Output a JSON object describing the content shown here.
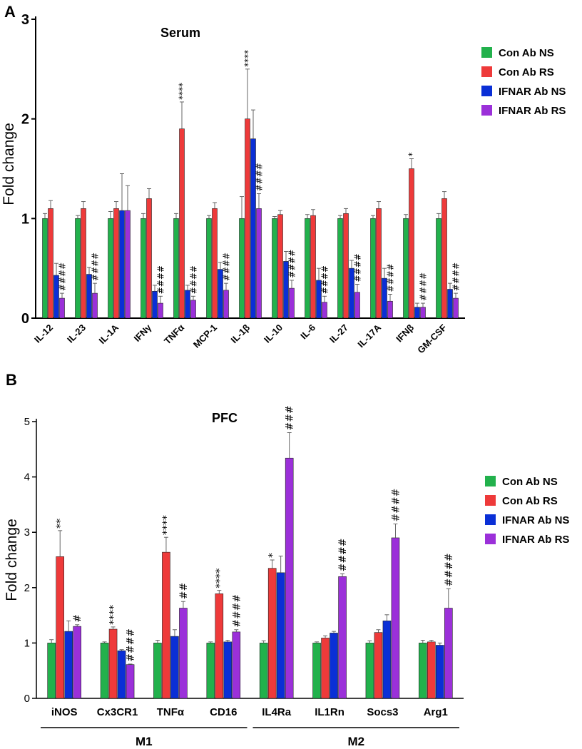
{
  "colors": {
    "Con Ab NS": "#22b14c",
    "Con Ab RS": "#ee3a3a",
    "IFNAR Ab NS": "#0a2fd6",
    "IFNAR Ab RS": "#9b30d9"
  },
  "chart_data": [
    {
      "panel": "A",
      "type": "bar",
      "title": "Serum",
      "ylabel": "Fold change",
      "xlabel": "",
      "ylim": [
        0,
        3
      ],
      "yticks": [
        "0",
        "1",
        "2",
        "3"
      ],
      "legend_position": "right",
      "categories": [
        "IL-12",
        "IL-23",
        "IL-1A",
        "IFNγ",
        "TNFα",
        "MCP-1",
        "IL-1β",
        "IL-10",
        "IL-6",
        "IL-27",
        "IL-17A",
        "IFNβ",
        "GM-CSF"
      ],
      "series": [
        {
          "name": "Con Ab NS",
          "values": [
            1.0,
            1.0,
            1.0,
            1.0,
            1.0,
            1.0,
            1.0,
            1.0,
            1.0,
            1.0,
            1.0,
            1.0,
            1.0
          ],
          "errors": [
            0.05,
            0.03,
            0.07,
            0.05,
            0.05,
            0.03,
            0.22,
            0.02,
            0.04,
            0.03,
            0.03,
            0.04,
            0.05
          ]
        },
        {
          "name": "Con Ab RS",
          "values": [
            1.1,
            1.1,
            1.1,
            1.2,
            1.9,
            1.1,
            2.0,
            1.04,
            1.03,
            1.05,
            1.1,
            1.5,
            1.2
          ],
          "errors": [
            0.08,
            0.07,
            0.07,
            0.1,
            0.27,
            0.06,
            0.5,
            0.04,
            0.06,
            0.05,
            0.07,
            0.1,
            0.07
          ]
        },
        {
          "name": "IFNAR Ab NS",
          "values": [
            0.43,
            0.44,
            1.08,
            0.27,
            0.28,
            0.49,
            1.8,
            0.57,
            0.38,
            0.5,
            0.4,
            0.11,
            0.29
          ],
          "errors": [
            0.12,
            0.07,
            0.37,
            0.06,
            0.05,
            0.07,
            0.29,
            0.1,
            0.12,
            0.08,
            0.1,
            0.04,
            0.06
          ]
        },
        {
          "name": "IFNAR Ab RS",
          "values": [
            0.2,
            0.25,
            1.08,
            0.15,
            0.18,
            0.28,
            1.1,
            0.3,
            0.16,
            0.26,
            0.17,
            0.11,
            0.2
          ],
          "errors": [
            0.05,
            0.1,
            0.25,
            0.07,
            0.04,
            0.07,
            0.15,
            0.08,
            0.06,
            0.08,
            0.07,
            0.04,
            0.05
          ]
        }
      ],
      "annotations": [
        {
          "category": "IL-12",
          "series": "IFNAR Ab RS",
          "text": "####"
        },
        {
          "category": "IL-23",
          "series": "IFNAR Ab RS",
          "text": "####"
        },
        {
          "category": "IFNγ",
          "series": "IFNAR Ab RS",
          "text": "####"
        },
        {
          "category": "TNFα",
          "series": "Con Ab RS",
          "text": "****"
        },
        {
          "category": "TNFα",
          "series": "IFNAR Ab RS",
          "text": "####"
        },
        {
          "category": "MCP-1",
          "series": "IFNAR Ab RS",
          "text": "####"
        },
        {
          "category": "IL-1β",
          "series": "Con Ab RS",
          "text": "****"
        },
        {
          "category": "IL-1β",
          "series": "IFNAR Ab RS",
          "text": "####"
        },
        {
          "category": "IL-10",
          "series": "IFNAR Ab RS",
          "text": "####"
        },
        {
          "category": "IL-6",
          "series": "IFNAR Ab RS",
          "text": "####"
        },
        {
          "category": "IL-27",
          "series": "IFNAR Ab RS",
          "text": "####"
        },
        {
          "category": "IL-17A",
          "series": "IFNAR Ab RS",
          "text": "####"
        },
        {
          "category": "IFNβ",
          "series": "Con Ab RS",
          "text": "*"
        },
        {
          "category": "IFNβ",
          "series": "IFNAR Ab RS",
          "text": "####"
        },
        {
          "category": "GM-CSF",
          "series": "IFNAR Ab RS",
          "text": "####"
        }
      ]
    },
    {
      "panel": "B",
      "type": "bar",
      "title": "PFC",
      "ylabel": "Fold change",
      "xlabel": "",
      "ylim": [
        0,
        5
      ],
      "yticks": [
        "0",
        "1",
        "2",
        "3",
        "4",
        "5"
      ],
      "legend_position": "right",
      "categories": [
        "iNOS",
        "Cx3CR1",
        "TNFα",
        "CD16",
        "IL4Ra",
        "IL1Rn",
        "Socs3",
        "Arg1"
      ],
      "groups": [
        {
          "label": "M1",
          "from": 0,
          "to": 3
        },
        {
          "label": "M2",
          "from": 4,
          "to": 7
        }
      ],
      "series": [
        {
          "name": "Con Ab NS",
          "values": [
            1.0,
            1.0,
            1.0,
            1.0,
            1.0,
            1.0,
            1.0,
            1.0
          ],
          "errors": [
            0.06,
            0.02,
            0.05,
            0.02,
            0.04,
            0.02,
            0.04,
            0.05
          ]
        },
        {
          "name": "Con Ab RS",
          "values": [
            2.56,
            1.25,
            2.64,
            1.89,
            2.35,
            1.09,
            1.19,
            1.02
          ],
          "errors": [
            0.47,
            0.04,
            0.27,
            0.06,
            0.15,
            0.04,
            0.05,
            0.03
          ]
        },
        {
          "name": "IFNAR Ab NS",
          "values": [
            1.21,
            0.86,
            1.12,
            1.02,
            2.27,
            1.18,
            1.4,
            0.96
          ],
          "errors": [
            0.19,
            0.02,
            0.12,
            0.03,
            0.3,
            0.03,
            0.11,
            0.04
          ]
        },
        {
          "name": "IFNAR Ab RS",
          "values": [
            1.3,
            0.61,
            1.63,
            1.2,
            4.34,
            2.2,
            2.9,
            1.63
          ],
          "errors": [
            0.03,
            0.01,
            0.12,
            0.04,
            0.46,
            0.05,
            0.25,
            0.35
          ]
        }
      ],
      "annotations": [
        {
          "category": "iNOS",
          "series": "Con Ab RS",
          "text": "**"
        },
        {
          "category": "iNOS",
          "series": "IFNAR Ab RS",
          "text": "#"
        },
        {
          "category": "Cx3CR1",
          "series": "Con Ab RS",
          "text": "****"
        },
        {
          "category": "Cx3CR1",
          "series": "IFNAR Ab RS",
          "text": "####"
        },
        {
          "category": "TNFα",
          "series": "Con Ab RS",
          "text": "****"
        },
        {
          "category": "TNFα",
          "series": "IFNAR Ab RS",
          "text": "##"
        },
        {
          "category": "CD16",
          "series": "Con Ab RS",
          "text": "****"
        },
        {
          "category": "CD16",
          "series": "IFNAR Ab RS",
          "text": "####"
        },
        {
          "category": "IL4Ra",
          "series": "Con Ab RS",
          "text": "*"
        },
        {
          "category": "IL4Ra",
          "series": "IFNAR Ab RS",
          "text": "###"
        },
        {
          "category": "IL1Rn",
          "series": "IFNAR Ab RS",
          "text": "####"
        },
        {
          "category": "Socs3",
          "series": "IFNAR Ab RS",
          "text": "####"
        },
        {
          "category": "Arg1",
          "series": "IFNAR Ab RS",
          "text": "####"
        }
      ]
    }
  ]
}
